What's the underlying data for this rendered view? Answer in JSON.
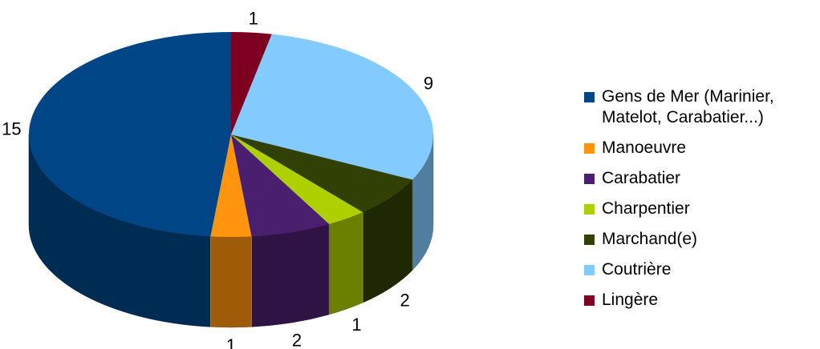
{
  "chart_data": {
    "type": "pie",
    "style": "3d",
    "slices": [
      {
        "label": "Gens de Mer (Marinier, Matelot, Carabatier...)",
        "value": 15,
        "color": "#004586"
      },
      {
        "label": "Manoeuvre",
        "value": 1,
        "color": "#FF950E"
      },
      {
        "label": "Carabatier",
        "value": 2,
        "color": "#4B1F6F"
      },
      {
        "label": "Charpentier",
        "value": 1,
        "color": "#AECF00"
      },
      {
        "label": "Marchand(e)",
        "value": 2,
        "color": "#314004"
      },
      {
        "label": "Coutrière",
        "value": 9,
        "color": "#83CAFF"
      },
      {
        "label": "Lingère",
        "value": 1,
        "color": "#7E0021"
      }
    ],
    "legend_position": "right"
  }
}
